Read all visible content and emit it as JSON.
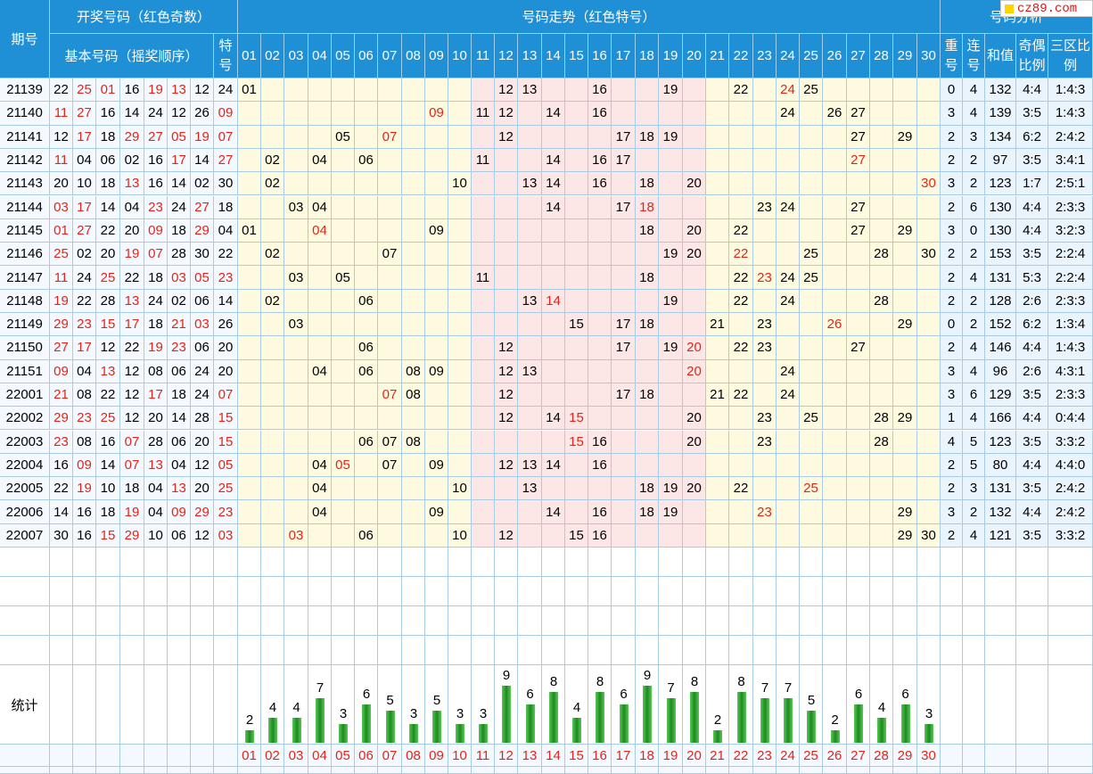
{
  "header": {
    "issue_col": "期号",
    "draw_group": "开奖号码（红色奇数）",
    "basic_numbers": "基本号码（摇奖顺序）",
    "special_label": "特号",
    "trend_group": "号码走势（红色特号）",
    "analysis_group": "号码分析",
    "repeat_label": "重号",
    "consec_label": "连号",
    "sum_label": "和值",
    "parity_label": "奇偶比例",
    "zone_label": "三区比例"
  },
  "logo": {
    "text": "cz89.com"
  },
  "numbers": [
    "01",
    "02",
    "03",
    "04",
    "05",
    "06",
    "07",
    "08",
    "09",
    "10",
    "11",
    "12",
    "13",
    "14",
    "15",
    "16",
    "17",
    "18",
    "19",
    "20",
    "21",
    "22",
    "23",
    "24",
    "25",
    "26",
    "27",
    "28",
    "29",
    "30"
  ],
  "rows": [
    {
      "issue": "21139",
      "draw": [
        "22",
        "25",
        "01",
        "16",
        "19",
        "13",
        "12"
      ],
      "special": "24",
      "repeat": "0",
      "consec": "4",
      "sum": "132",
      "parity": "4:4",
      "zone": "1:4:3"
    },
    {
      "issue": "21140",
      "draw": [
        "11",
        "27",
        "16",
        "14",
        "24",
        "12",
        "26"
      ],
      "special": "09",
      "repeat": "3",
      "consec": "4",
      "sum": "139",
      "parity": "3:5",
      "zone": "1:4:3"
    },
    {
      "issue": "21141",
      "draw": [
        "12",
        "17",
        "18",
        "29",
        "27",
        "05",
        "19"
      ],
      "special": "07",
      "repeat": "2",
      "consec": "3",
      "sum": "134",
      "parity": "6:2",
      "zone": "2:4:2"
    },
    {
      "issue": "21142",
      "draw": [
        "11",
        "04",
        "06",
        "02",
        "16",
        "17",
        "14"
      ],
      "special": "27",
      "repeat": "2",
      "consec": "2",
      "sum": "97",
      "parity": "3:5",
      "zone": "3:4:1"
    },
    {
      "issue": "21143",
      "draw": [
        "20",
        "10",
        "18",
        "13",
        "16",
        "14",
        "02"
      ],
      "special": "30",
      "repeat": "3",
      "consec": "2",
      "sum": "123",
      "parity": "1:7",
      "zone": "2:5:1"
    },
    {
      "issue": "21144",
      "draw": [
        "03",
        "17",
        "14",
        "04",
        "23",
        "24",
        "27"
      ],
      "special": "18",
      "repeat": "2",
      "consec": "6",
      "sum": "130",
      "parity": "4:4",
      "zone": "2:3:3"
    },
    {
      "issue": "21145",
      "draw": [
        "01",
        "27",
        "22",
        "20",
        "09",
        "18",
        "29"
      ],
      "special": "04",
      "repeat": "3",
      "consec": "0",
      "sum": "130",
      "parity": "4:4",
      "zone": "3:2:3"
    },
    {
      "issue": "21146",
      "draw": [
        "25",
        "02",
        "20",
        "19",
        "07",
        "28",
        "30"
      ],
      "special": "22",
      "repeat": "2",
      "consec": "2",
      "sum": "153",
      "parity": "3:5",
      "zone": "2:2:4"
    },
    {
      "issue": "21147",
      "draw": [
        "11",
        "24",
        "25",
        "22",
        "18",
        "03",
        "05"
      ],
      "special": "23",
      "repeat": "2",
      "consec": "4",
      "sum": "131",
      "parity": "5:3",
      "zone": "2:2:4"
    },
    {
      "issue": "21148",
      "draw": [
        "19",
        "22",
        "28",
        "13",
        "24",
        "02",
        "06"
      ],
      "special": "14",
      "repeat": "2",
      "consec": "2",
      "sum": "128",
      "parity": "2:6",
      "zone": "2:3:3"
    },
    {
      "issue": "21149",
      "draw": [
        "29",
        "23",
        "15",
        "17",
        "18",
        "21",
        "03"
      ],
      "special": "26",
      "repeat": "0",
      "consec": "2",
      "sum": "152",
      "parity": "6:2",
      "zone": "1:3:4"
    },
    {
      "issue": "21150",
      "draw": [
        "27",
        "17",
        "12",
        "22",
        "19",
        "23",
        "06"
      ],
      "special": "20",
      "repeat": "2",
      "consec": "4",
      "sum": "146",
      "parity": "4:4",
      "zone": "1:4:3"
    },
    {
      "issue": "21151",
      "draw": [
        "09",
        "04",
        "13",
        "12",
        "08",
        "06",
        "24"
      ],
      "special": "20",
      "repeat": "3",
      "consec": "4",
      "sum": "96",
      "parity": "2:6",
      "zone": "4:3:1"
    },
    {
      "issue": "22001",
      "draw": [
        "21",
        "08",
        "22",
        "12",
        "17",
        "18",
        "24"
      ],
      "special": "07",
      "repeat": "3",
      "consec": "6",
      "sum": "129",
      "parity": "3:5",
      "zone": "2:3:3"
    },
    {
      "issue": "22002",
      "draw": [
        "29",
        "23",
        "25",
        "12",
        "20",
        "14",
        "28"
      ],
      "special": "15",
      "repeat": "1",
      "consec": "4",
      "sum": "166",
      "parity": "4:4",
      "zone": "0:4:4"
    },
    {
      "issue": "22003",
      "draw": [
        "23",
        "08",
        "16",
        "07",
        "28",
        "06",
        "20"
      ],
      "special": "15",
      "repeat": "4",
      "consec": "5",
      "sum": "123",
      "parity": "3:5",
      "zone": "3:3:2"
    },
    {
      "issue": "22004",
      "draw": [
        "16",
        "09",
        "14",
        "07",
        "13",
        "04",
        "12"
      ],
      "special": "05",
      "repeat": "2",
      "consec": "5",
      "sum": "80",
      "parity": "4:4",
      "zone": "4:4:0"
    },
    {
      "issue": "22005",
      "draw": [
        "22",
        "19",
        "10",
        "18",
        "04",
        "13",
        "20"
      ],
      "special": "25",
      "repeat": "2",
      "consec": "3",
      "sum": "131",
      "parity": "3:5",
      "zone": "2:4:2"
    },
    {
      "issue": "22006",
      "draw": [
        "14",
        "16",
        "18",
        "19",
        "04",
        "09",
        "29"
      ],
      "special": "23",
      "repeat": "3",
      "consec": "2",
      "sum": "132",
      "parity": "4:4",
      "zone": "2:4:2"
    },
    {
      "issue": "22007",
      "draw": [
        "30",
        "16",
        "15",
        "29",
        "10",
        "06",
        "12"
      ],
      "special": "03",
      "repeat": "2",
      "consec": "4",
      "sum": "121",
      "parity": "3:5",
      "zone": "3:3:2"
    }
  ],
  "stats": {
    "label": "统计",
    "counts": [
      2,
      4,
      4,
      7,
      3,
      6,
      5,
      3,
      5,
      3,
      3,
      9,
      6,
      8,
      4,
      8,
      6,
      9,
      7,
      8,
      2,
      8,
      7,
      7,
      5,
      2,
      6,
      4,
      6,
      3
    ]
  },
  "colors": {
    "header": "#1f8fd6",
    "zone_yellow": "#fdfae0",
    "zone_pink": "#fde6e6",
    "odd_red": "#e0261a",
    "bar_green": "#2e9e2e"
  }
}
